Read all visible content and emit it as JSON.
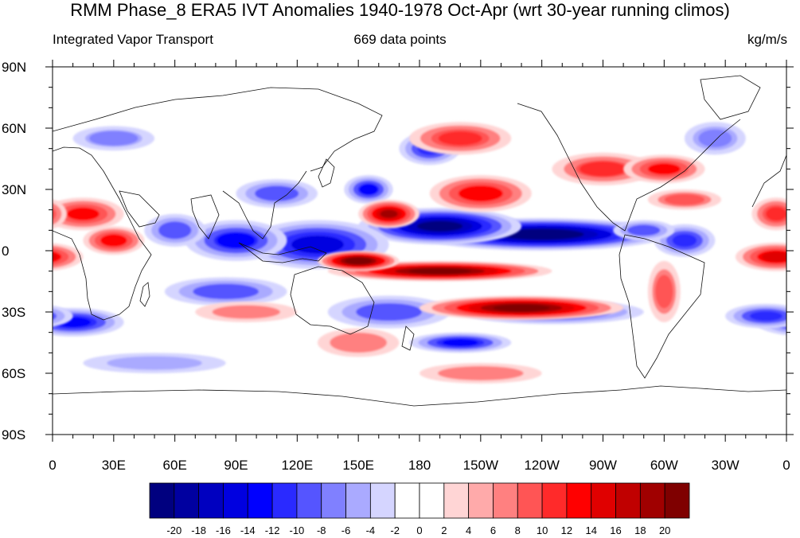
{
  "title": "RMM Phase_8 ERA5 IVT Anomalies 1940-1978 Oct-Apr (wrt 30-year running climos)",
  "subtitle_left": "Integrated Vapor Transport",
  "subtitle_center": "669 data points",
  "subtitle_right": "kg/m/s",
  "map": {
    "lon_range": [
      0,
      360
    ],
    "lat_range": [
      -90,
      90
    ],
    "x_ticks": [
      {
        "lon": 0,
        "label": "0"
      },
      {
        "lon": 30,
        "label": "30E"
      },
      {
        "lon": 60,
        "label": "60E"
      },
      {
        "lon": 90,
        "label": "90E"
      },
      {
        "lon": 120,
        "label": "120E"
      },
      {
        "lon": 150,
        "label": "150E"
      },
      {
        "lon": 180,
        "label": "180"
      },
      {
        "lon": 210,
        "label": "150W"
      },
      {
        "lon": 240,
        "label": "120W"
      },
      {
        "lon": 270,
        "label": "90W"
      },
      {
        "lon": 300,
        "label": "60W"
      },
      {
        "lon": 330,
        "label": "30W"
      },
      {
        "lon": 360,
        "label": "0"
      }
    ],
    "y_ticks": [
      {
        "lat": 90,
        "label": "90N"
      },
      {
        "lat": 60,
        "label": "60N"
      },
      {
        "lat": 30,
        "label": "30N"
      },
      {
        "lat": 0,
        "label": "0"
      },
      {
        "lat": -30,
        "label": "30S"
      },
      {
        "lat": -60,
        "label": "60S"
      },
      {
        "lat": -90,
        "label": "90S"
      }
    ],
    "anomaly_features": [
      {
        "lon": 240,
        "lat": 8,
        "rlon": 62,
        "rlat": 8,
        "value": -24
      },
      {
        "lon": 190,
        "lat": 12,
        "rlon": 40,
        "rlat": 9,
        "value": -22
      },
      {
        "lon": 130,
        "lat": 3,
        "rlon": 35,
        "rlat": 12,
        "value": -16
      },
      {
        "lon": 90,
        "lat": 5,
        "rlon": 25,
        "rlat": 10,
        "value": -13
      },
      {
        "lon": 60,
        "lat": 10,
        "rlon": 15,
        "rlat": 8,
        "value": -10
      },
      {
        "lon": 85,
        "lat": -20,
        "rlon": 30,
        "rlat": 7,
        "value": -10
      },
      {
        "lon": 155,
        "lat": 30,
        "rlon": 12,
        "rlat": 7,
        "value": -13
      },
      {
        "lon": 110,
        "lat": 28,
        "rlon": 20,
        "rlat": 7,
        "value": -10
      },
      {
        "lon": 185,
        "lat": 50,
        "rlon": 15,
        "rlat": 8,
        "value": -12
      },
      {
        "lon": 245,
        "lat": -30,
        "rlon": 45,
        "rlat": 6,
        "value": -14
      },
      {
        "lon": 200,
        "lat": -45,
        "rlon": 25,
        "rlat": 5,
        "value": -14
      },
      {
        "lon": 165,
        "lat": -30,
        "rlon": 30,
        "rlat": 8,
        "value": -10
      },
      {
        "lon": 10,
        "lat": -35,
        "rlon": 25,
        "rlat": 7,
        "value": -14
      },
      {
        "lon": 350,
        "lat": -32,
        "rlon": 20,
        "rlat": 6,
        "value": -12
      },
      {
        "lon": 310,
        "lat": 5,
        "rlon": 15,
        "rlat": 8,
        "value": -12
      },
      {
        "lon": 290,
        "lat": 10,
        "rlon": 15,
        "rlat": 5,
        "value": -10
      },
      {
        "lon": 325,
        "lat": 55,
        "rlon": 15,
        "rlat": 8,
        "value": -8
      },
      {
        "lon": 30,
        "lat": 55,
        "rlon": 20,
        "rlat": 6,
        "value": -7
      },
      {
        "lon": 50,
        "lat": -55,
        "rlon": 35,
        "rlat": 5,
        "value": -6
      },
      {
        "lon": 190,
        "lat": -10,
        "rlon": 55,
        "rlat": 5,
        "value": 22
      },
      {
        "lon": 230,
        "lat": -28,
        "rlon": 50,
        "rlat": 6,
        "value": 22
      },
      {
        "lon": 150,
        "lat": -5,
        "rlon": 20,
        "rlat": 5,
        "value": 24
      },
      {
        "lon": 165,
        "lat": 18,
        "rlon": 15,
        "rlat": 7,
        "value": 18
      },
      {
        "lon": 210,
        "lat": 28,
        "rlon": 25,
        "rlat": 9,
        "value": 13
      },
      {
        "lon": 200,
        "lat": 55,
        "rlon": 25,
        "rlat": 8,
        "value": 11
      },
      {
        "lon": 270,
        "lat": 40,
        "rlon": 25,
        "rlat": 8,
        "value": 10
      },
      {
        "lon": 300,
        "lat": 40,
        "rlon": 20,
        "rlat": 7,
        "value": 12
      },
      {
        "lon": 15,
        "lat": 18,
        "rlon": 20,
        "rlat": 8,
        "value": 12
      },
      {
        "lon": 30,
        "lat": 5,
        "rlon": 15,
        "rlat": 7,
        "value": 13
      },
      {
        "lon": 355,
        "lat": -3,
        "rlon": 20,
        "rlat": 7,
        "value": 14
      },
      {
        "lon": 355,
        "lat": 18,
        "rlon": 12,
        "rlat": 8,
        "value": 11
      },
      {
        "lon": 210,
        "lat": -60,
        "rlon": 30,
        "rlat": 5,
        "value": 7
      },
      {
        "lon": 310,
        "lat": 25,
        "rlon": 18,
        "rlat": 5,
        "value": 8
      },
      {
        "lon": 300,
        "lat": -20,
        "rlon": 8,
        "rlat": 15,
        "value": 8
      },
      {
        "lon": 95,
        "lat": -30,
        "rlon": 25,
        "rlat": 5,
        "value": 6
      },
      {
        "lon": 150,
        "lat": -45,
        "rlon": 20,
        "rlat": 7,
        "value": 7
      }
    ]
  },
  "colorbar": {
    "colors": [
      "#00007f",
      "#0000a0",
      "#0000c0",
      "#0000e0",
      "#0000ff",
      "#2a2aff",
      "#5555ff",
      "#8080ff",
      "#aaaaff",
      "#d5d5ff",
      "#ffffff",
      "#ffffff",
      "#ffd5d5",
      "#ffaaaa",
      "#ff8080",
      "#ff5555",
      "#ff2a2a",
      "#ff0000",
      "#e00000",
      "#c00000",
      "#a00000",
      "#7f0000"
    ],
    "labels": [
      "-20",
      "-18",
      "-16",
      "-14",
      "-12",
      "-10",
      "-8",
      "-6",
      "-4",
      "-2",
      "0",
      "2",
      "4",
      "6",
      "8",
      "10",
      "12",
      "14",
      "16",
      "18",
      "20"
    ]
  }
}
